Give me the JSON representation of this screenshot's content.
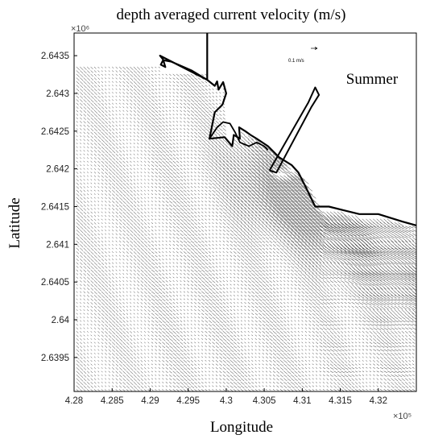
{
  "chart_data": {
    "type": "quiver",
    "title": "depth averaged  current velocity (m/s)",
    "season_label": "Summer",
    "xlabel": "Longitude",
    "ylabel": "Latitude",
    "x_exponent": "×10⁵",
    "y_exponent": "×10⁶",
    "xlim": [
      4.28,
      4.325
    ],
    "ylim": [
      2.63905,
      2.6438
    ],
    "x_ticks": [
      4.28,
      4.285,
      4.29,
      4.295,
      4.3,
      4.305,
      4.31,
      4.315,
      4.32
    ],
    "x_tick_labels": [
      "4.28",
      "4.285",
      "4.29",
      "4.295",
      "4.3",
      "4.305",
      "4.31",
      "4.315",
      "4.32"
    ],
    "y_ticks": [
      2.6435,
      2.643,
      2.6425,
      2.642,
      2.6415,
      2.641,
      2.6405,
      2.64,
      2.6395
    ],
    "y_tick_labels": [
      "2.6435",
      "2.643",
      "2.6425",
      "2.642",
      "2.6415",
      "2.641",
      "2.6405",
      "2.64",
      "2.6395"
    ],
    "reference_vector": {
      "label": "0.1 m/s",
      "speed": 0.1
    },
    "coastline": [
      [
        4.2975,
        2.6438
      ],
      [
        4.2975,
        2.64318
      ],
      [
        4.2955,
        2.6433
      ],
      [
        4.2928,
        2.64342
      ],
      [
        4.2917,
        2.64344
      ],
      [
        4.2914,
        2.64338
      ],
      [
        4.292,
        2.64335
      ],
      [
        4.2917,
        2.64345
      ],
      [
        4.2913,
        2.6435
      ],
      [
        4.2975,
        2.64318
      ],
      [
        4.2985,
        2.6431
      ],
      [
        4.2988,
        2.64316
      ],
      [
        4.299,
        2.64305
      ],
      [
        4.2996,
        2.64315
      ],
      [
        4.3,
        2.643
      ],
      [
        4.2995,
        2.64285
      ],
      [
        4.2985,
        2.64275
      ],
      [
        4.2978,
        2.6424
      ],
      [
        4.2998,
        2.64242
      ],
      [
        4.3008,
        2.6423
      ],
      [
        4.301,
        2.64245
      ],
      [
        4.3018,
        2.6424
      ],
      [
        4.3017,
        2.64255
      ],
      [
        4.3025,
        2.6425
      ],
      [
        4.3032,
        2.64245
      ],
      [
        4.304,
        2.6424
      ],
      [
        4.3055,
        2.6423
      ],
      [
        4.307,
        2.64215
      ],
      [
        4.3086,
        2.64205
      ],
      [
        4.3095,
        2.64195
      ],
      [
        4.3105,
        2.64175
      ],
      [
        4.3117,
        2.6415
      ],
      [
        4.3135,
        2.6415
      ],
      [
        4.3155,
        2.64145
      ],
      [
        4.3175,
        2.6414
      ],
      [
        4.32,
        2.6414
      ],
      [
        4.3232,
        2.6413
      ],
      [
        4.325,
        2.64125
      ]
    ],
    "inner_coast": [
      [
        4.2978,
        2.6424
      ],
      [
        4.2988,
        2.64255
      ],
      [
        4.2996,
        2.64262
      ],
      [
        4.3005,
        2.6426
      ],
      [
        4.3012,
        2.64248
      ],
      [
        4.3018,
        2.64235
      ],
      [
        4.303,
        2.6423
      ],
      [
        4.304,
        2.64235
      ],
      [
        4.305,
        2.6423
      ],
      [
        4.3055,
        2.64225
      ]
    ],
    "jetty": [
      [
        4.3057,
        2.64198
      ],
      [
        4.3108,
        2.64288
      ],
      [
        4.3117,
        2.64308
      ],
      [
        4.3122,
        2.64298
      ],
      [
        4.3112,
        2.64282
      ],
      [
        4.3066,
        2.64195
      ],
      [
        4.3057,
        2.64198
      ]
    ],
    "flow_field": {
      "description": "Current vectors directed toward the lower-right (SE) over most of the domain, with a concentrated high-speed jet off the harbour mouth near (4.3085, 2.6417) and weaker, more varied vectors along the eastern coast.",
      "general_direction_deg": -38,
      "jet_center": [
        4.3085,
        2.6417
      ],
      "typical_speed": 0.1,
      "max_speed": 0.35
    }
  }
}
